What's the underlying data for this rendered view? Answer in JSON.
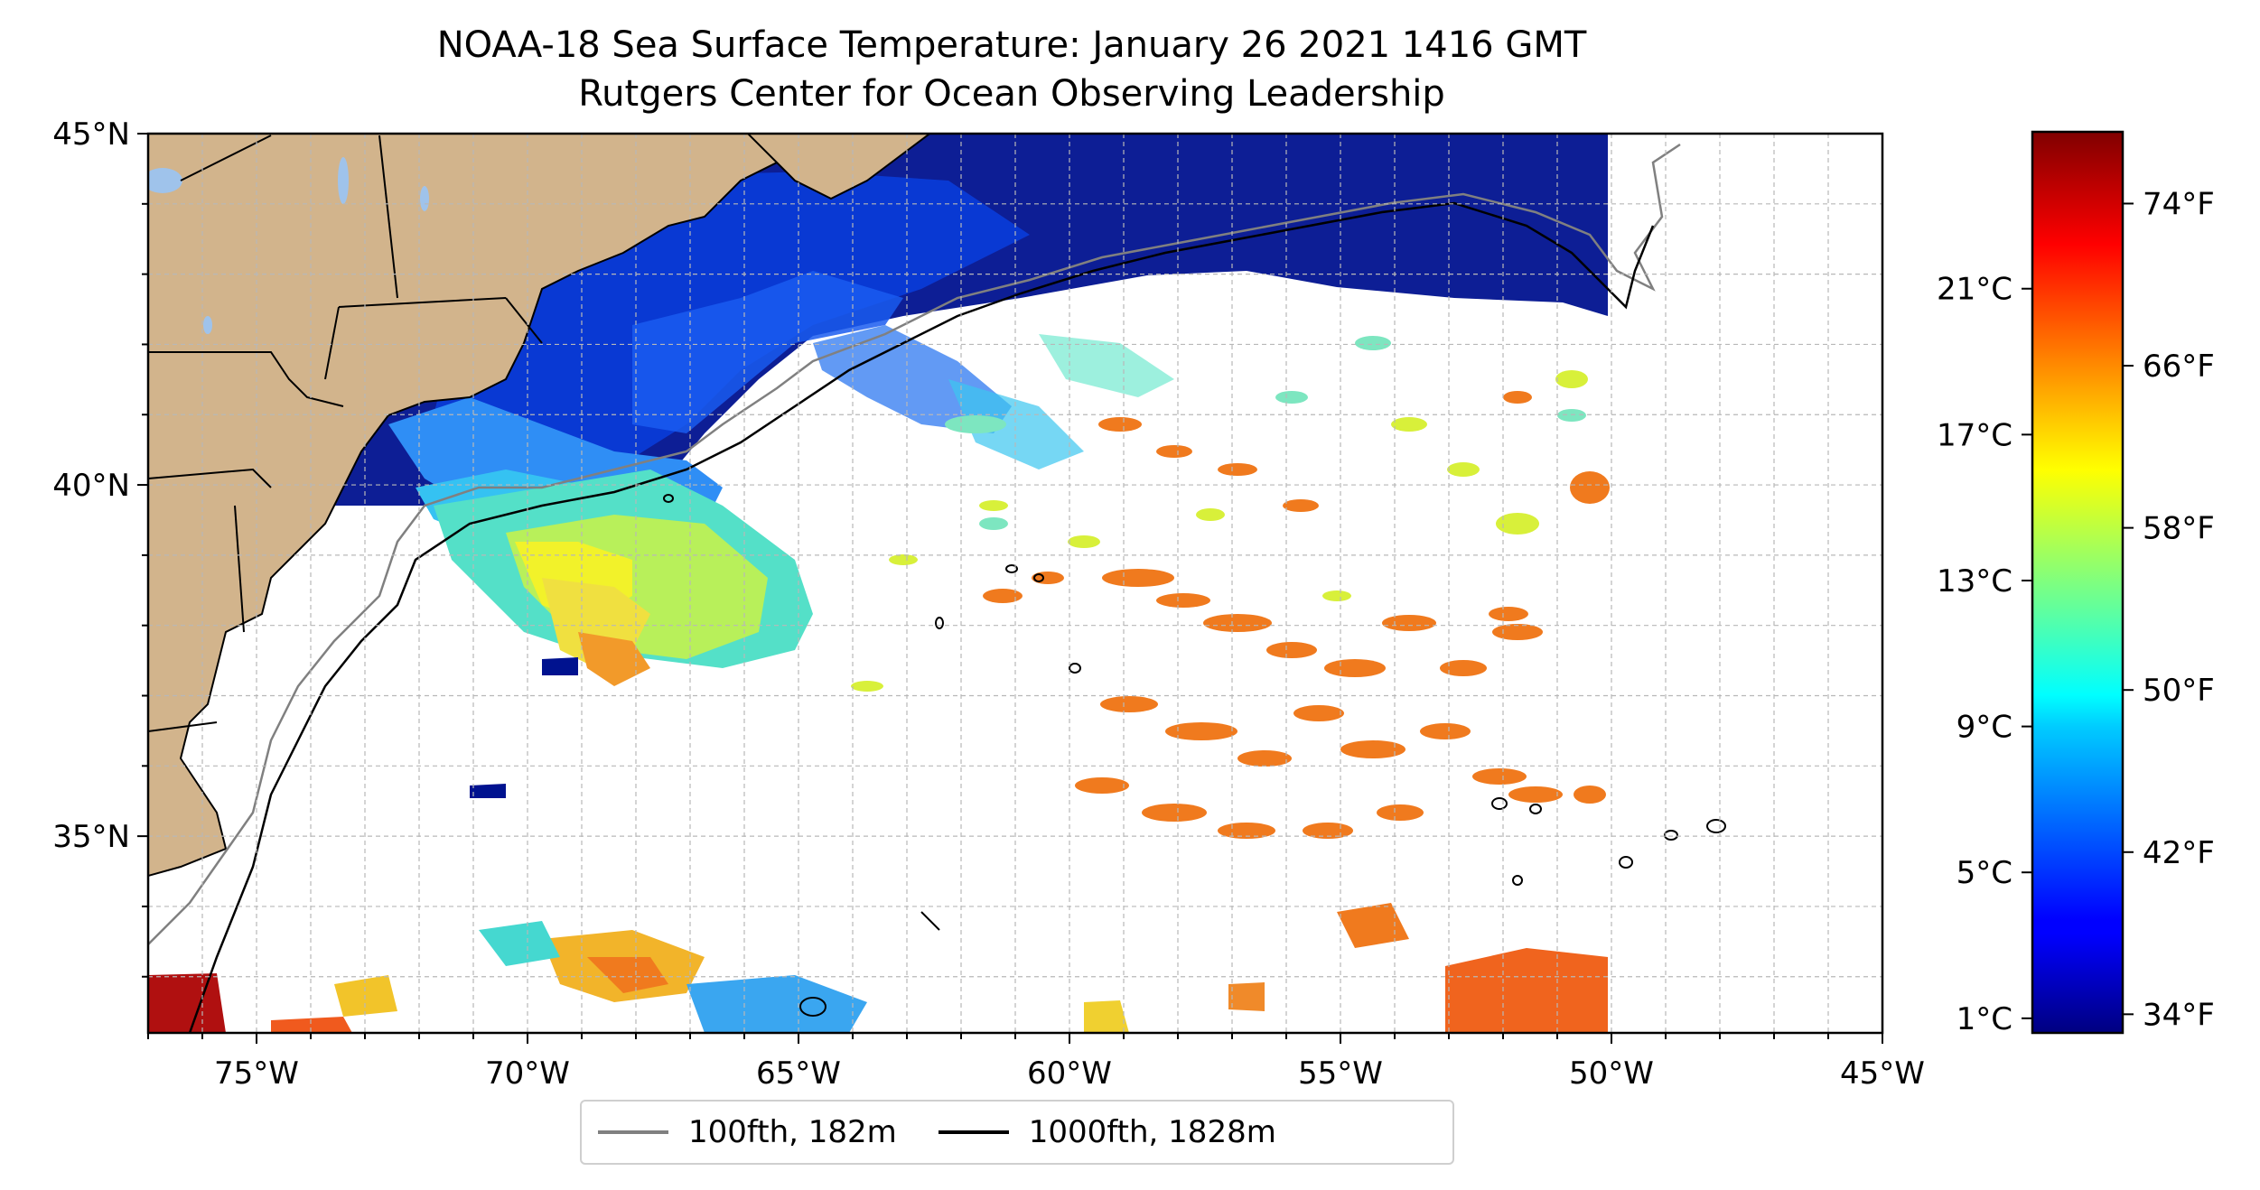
{
  "title": {
    "line1": "NOAA-18 Sea Surface Temperature: January 26 2021 1416 GMT",
    "line2": "Rutgers Center for Ocean Observing Leadership"
  },
  "map": {
    "lon_range": [
      -77,
      -45
    ],
    "lat_range": [
      32.2,
      45
    ],
    "lon_ticks": [
      {
        "value": -75,
        "label": "75°W"
      },
      {
        "value": -70,
        "label": "70°W"
      },
      {
        "value": -65,
        "label": "65°W"
      },
      {
        "value": -60,
        "label": "60°W"
      },
      {
        "value": -55,
        "label": "55°W"
      },
      {
        "value": -50,
        "label": "50°W"
      },
      {
        "value": -45,
        "label": "45°W"
      }
    ],
    "lat_ticks": [
      {
        "value": 45,
        "label": "45°N"
      },
      {
        "value": 40,
        "label": "40°N"
      },
      {
        "value": 35,
        "label": "35°N"
      }
    ],
    "grid": true,
    "grid_spacing_deg": 1,
    "colors": {
      "land": "#d2b48c",
      "lakes": "#9fc3eb",
      "border": "#000000",
      "isobath_100": "#808080",
      "isobath_1000": "#000000",
      "grid": "#b8b8b8",
      "no_data": "#ffffff"
    }
  },
  "colorbar": {
    "colormap": "jet",
    "range_c": [
      0.6,
      25.3
    ],
    "celsius_ticks": [
      {
        "value": 1,
        "label": "1°C"
      },
      {
        "value": 5,
        "label": "5°C"
      },
      {
        "value": 9,
        "label": "9°C"
      },
      {
        "value": 13,
        "label": "13°C"
      },
      {
        "value": 17,
        "label": "17°C"
      },
      {
        "value": 21,
        "label": "21°C"
      }
    ],
    "fahrenheit_ticks": [
      {
        "value": 34,
        "label": "34°F"
      },
      {
        "value": 42,
        "label": "42°F"
      },
      {
        "value": 50,
        "label": "50°F"
      },
      {
        "value": 58,
        "label": "58°F"
      },
      {
        "value": 66,
        "label": "66°F"
      },
      {
        "value": 74,
        "label": "74°F"
      }
    ]
  },
  "legend": {
    "items": [
      {
        "label": "100fth, 182m",
        "color": "#808080"
      },
      {
        "label": "1000fth, 1828m",
        "color": "#000000"
      }
    ]
  }
}
